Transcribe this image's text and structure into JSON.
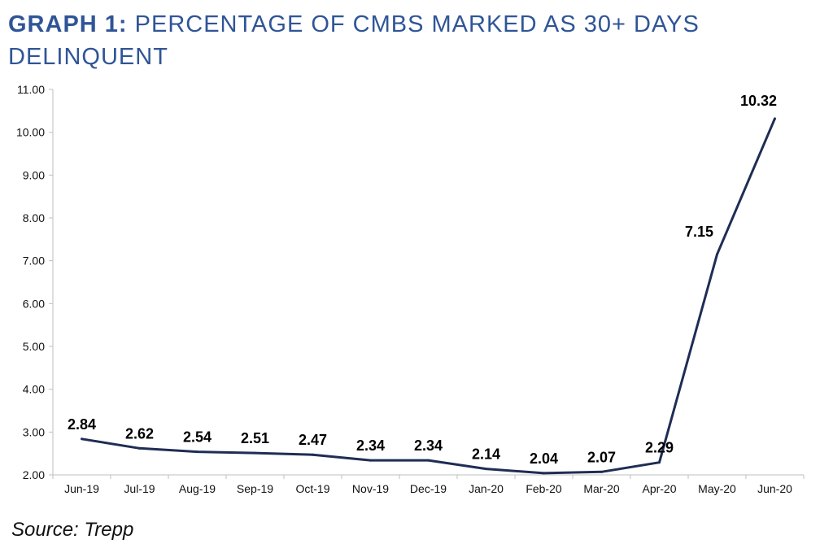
{
  "title": {
    "bold_part": "GRAPH 1:",
    "rest": " PERCENTAGE OF CMBS MARKED AS 30+ DAYS DELINQUENT"
  },
  "source": "Source: Trepp",
  "colors": {
    "title": "#2f5597",
    "line": "#1f2d55",
    "axis": "#bfbfbf"
  },
  "chart_data": {
    "type": "line",
    "categories": [
      "Jun-19",
      "Jul-19",
      "Aug-19",
      "Sep-19",
      "Oct-19",
      "Nov-19",
      "Dec-19",
      "Jan-20",
      "Feb-20",
      "Mar-20",
      "Apr-20",
      "May-20",
      "Jun-20"
    ],
    "series": [
      {
        "values": [
          2.84,
          2.62,
          2.54,
          2.51,
          2.47,
          2.34,
          2.34,
          2.14,
          2.04,
          2.07,
          2.29,
          7.15,
          10.32
        ]
      }
    ],
    "data_labels": [
      "2.84",
      "2.62",
      "2.54",
      "2.51",
      "2.47",
      "2.34",
      "2.34",
      "2.14",
      "2.04",
      "2.07",
      "2.29",
      "7.15",
      "10.32"
    ],
    "yticks": [
      "2.00",
      "3.00",
      "4.00",
      "5.00",
      "6.00",
      "7.00",
      "8.00",
      "9.00",
      "10.00",
      "11.00"
    ],
    "ylim": [
      2,
      11
    ],
    "grid": false,
    "legend": "none"
  }
}
